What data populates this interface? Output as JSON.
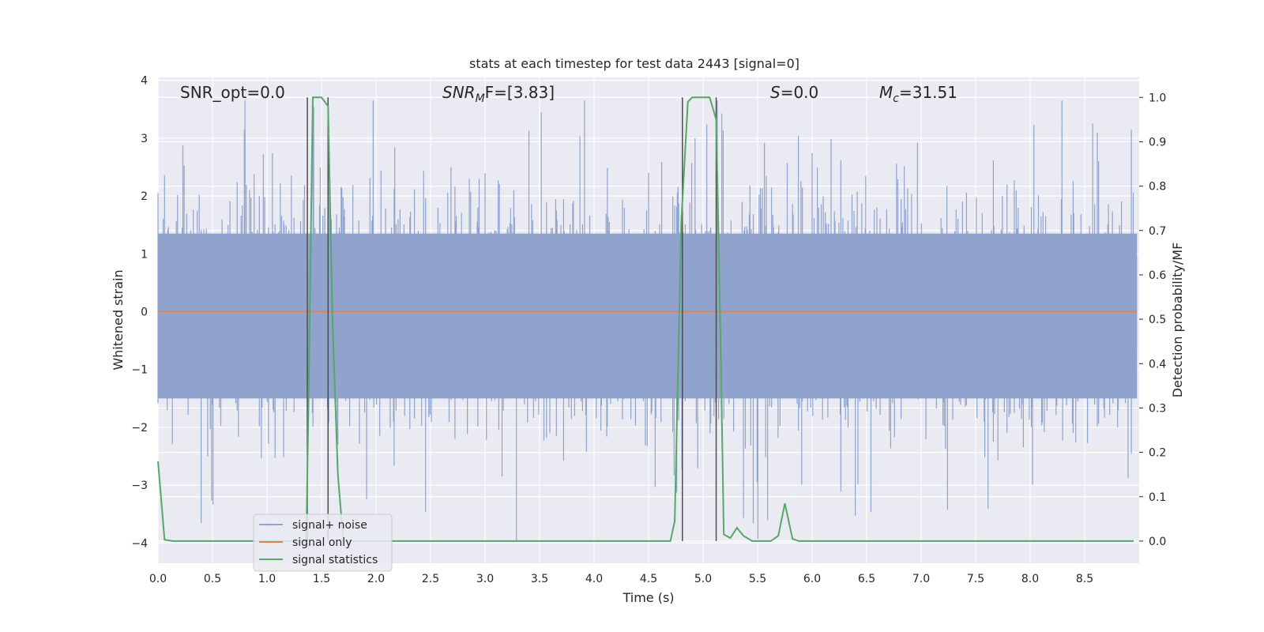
{
  "chart_data": {
    "type": "line",
    "title": "stats at each timestep for test data 2443 [signal=0]",
    "xlabel": "Time (s)",
    "ylabel": "Whitened strain",
    "ylabel_right": "Detection probability/MF",
    "xlim": [
      0.0,
      9.0
    ],
    "ylim": [
      -4.35,
      4.05
    ],
    "ylim_right": [
      -0.05,
      1.045
    ],
    "x_ticks": [
      "0.0",
      "0.5",
      "1.0",
      "1.5",
      "2.0",
      "2.5",
      "3.0",
      "3.5",
      "4.0",
      "4.5",
      "5.0",
      "5.5",
      "6.0",
      "6.5",
      "7.0",
      "7.5",
      "8.0",
      "8.5"
    ],
    "y_ticks": [
      "4",
      "3",
      "2",
      "1",
      "0",
      "−1",
      "−2",
      "−3",
      "−4"
    ],
    "y_ticks_right": [
      "1.0",
      "0.9",
      "0.8",
      "0.7",
      "0.6",
      "0.5",
      "0.4",
      "0.3",
      "0.2",
      "0.1",
      "0.0"
    ],
    "grid": true,
    "legend_position": "lower-left",
    "annotations": {
      "snr_opt": "SNR_opt=0.0",
      "snr_mf_main": "SNR",
      "snr_mf_sub": "M",
      "snr_mf_tail": "F=[3.83]",
      "s_main": "S",
      "s_tail": "=0.0",
      "mc_main": "M",
      "mc_sub": "c",
      "mc_tail": "=31.51"
    },
    "series": [
      {
        "name": "signal+ noise",
        "color": "#8fa3cc",
        "description_values": "whitened noise, roughly gaussian within about ±3.6"
      },
      {
        "name": "signal only",
        "color": "#dd8452",
        "values_constant": 0.0
      },
      {
        "name": "signal statistics",
        "color": "#55a868",
        "axis": "right",
        "x": [
          0.0,
          0.06,
          0.14,
          0.5,
          1.0,
          1.3,
          1.36,
          1.38,
          1.42,
          1.5,
          1.56,
          1.6,
          1.65,
          1.7,
          2.0,
          3.0,
          4.0,
          4.5,
          4.7,
          4.74,
          4.8,
          4.86,
          4.9,
          5.0,
          5.06,
          5.12,
          5.16,
          5.19,
          5.25,
          5.31,
          5.37,
          5.45,
          5.55,
          5.62,
          5.69,
          5.75,
          5.82,
          5.88,
          6.5,
          7.5,
          8.5,
          8.95
        ],
        "values": [
          0.18,
          0.003,
          0.0,
          0.0,
          0.0,
          0.0,
          0.0,
          0.3,
          1.0,
          1.0,
          0.98,
          0.5,
          0.15,
          0.0,
          0.0,
          0.0,
          0.0,
          0.0,
          0.0,
          0.045,
          0.72,
          0.99,
          1.0,
          1.0,
          1.0,
          0.95,
          0.45,
          0.015,
          0.007,
          0.03,
          0.012,
          0.0,
          0.0,
          0.0,
          0.012,
          0.085,
          0.005,
          0.0,
          0.0,
          0.0,
          0.0,
          0.0
        ]
      }
    ],
    "vertical_lines": [
      1.37,
      1.56,
      4.81,
      5.12
    ]
  },
  "colors": {
    "plot_background": "#eaeaf2",
    "grid": "#ffffff",
    "vline": "#4d4d4d"
  }
}
